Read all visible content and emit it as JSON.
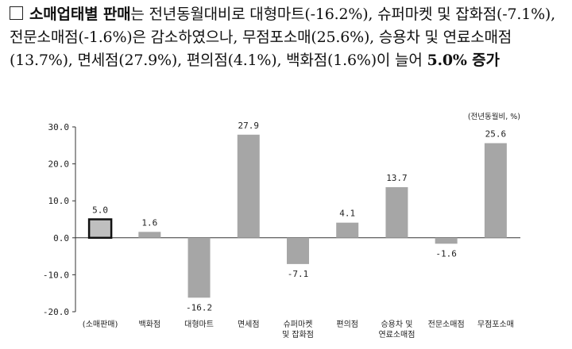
{
  "headline": {
    "title": "소매업태별 판매",
    "t1": "는 전년동월대비로 대형마트(-16.2%), 슈퍼마켓 및 잡화점(-7.1%), 전문소매점(-1.6%)은 감소하였으나, 무점포소매(25.6%), 승용차 및 연료소매점(13.7%), 면세점(27.9%), 편의점(4.1%), 백화점(1.6%)이 늘어 ",
    "highlight": "5.0% 증가"
  },
  "chart_data": {
    "type": "bar",
    "unit_note": "(전년동월비, %)",
    "ylim": [
      -20,
      30
    ],
    "yticks": [
      "30.0",
      "20.0",
      "10.0",
      "0.0",
      "-10.0",
      "-20.0"
    ],
    "categories": [
      [
        "(소매판매)"
      ],
      [
        "백화점"
      ],
      [
        "대형마트"
      ],
      [
        "면세점"
      ],
      [
        "슈퍼마켓",
        "및 잡화점"
      ],
      [
        "편의점"
      ],
      [
        "승용차 및",
        "연료소매점"
      ],
      [
        "전문소매점"
      ],
      [
        "무점포소매"
      ]
    ],
    "values": [
      5.0,
      1.6,
      -16.2,
      27.9,
      -7.1,
      4.1,
      13.7,
      -1.6,
      25.6
    ],
    "value_labels": [
      "5.0",
      "1.6",
      "-16.2",
      "27.9",
      "-7.1",
      "4.1",
      "13.7",
      "-1.6",
      "25.6"
    ],
    "highlight_index": 0,
    "colors": {
      "bar": "#a6a6a6",
      "highlight_fill": "#bfbfbf",
      "highlight_border": "#111111",
      "axis": "#333333"
    }
  }
}
